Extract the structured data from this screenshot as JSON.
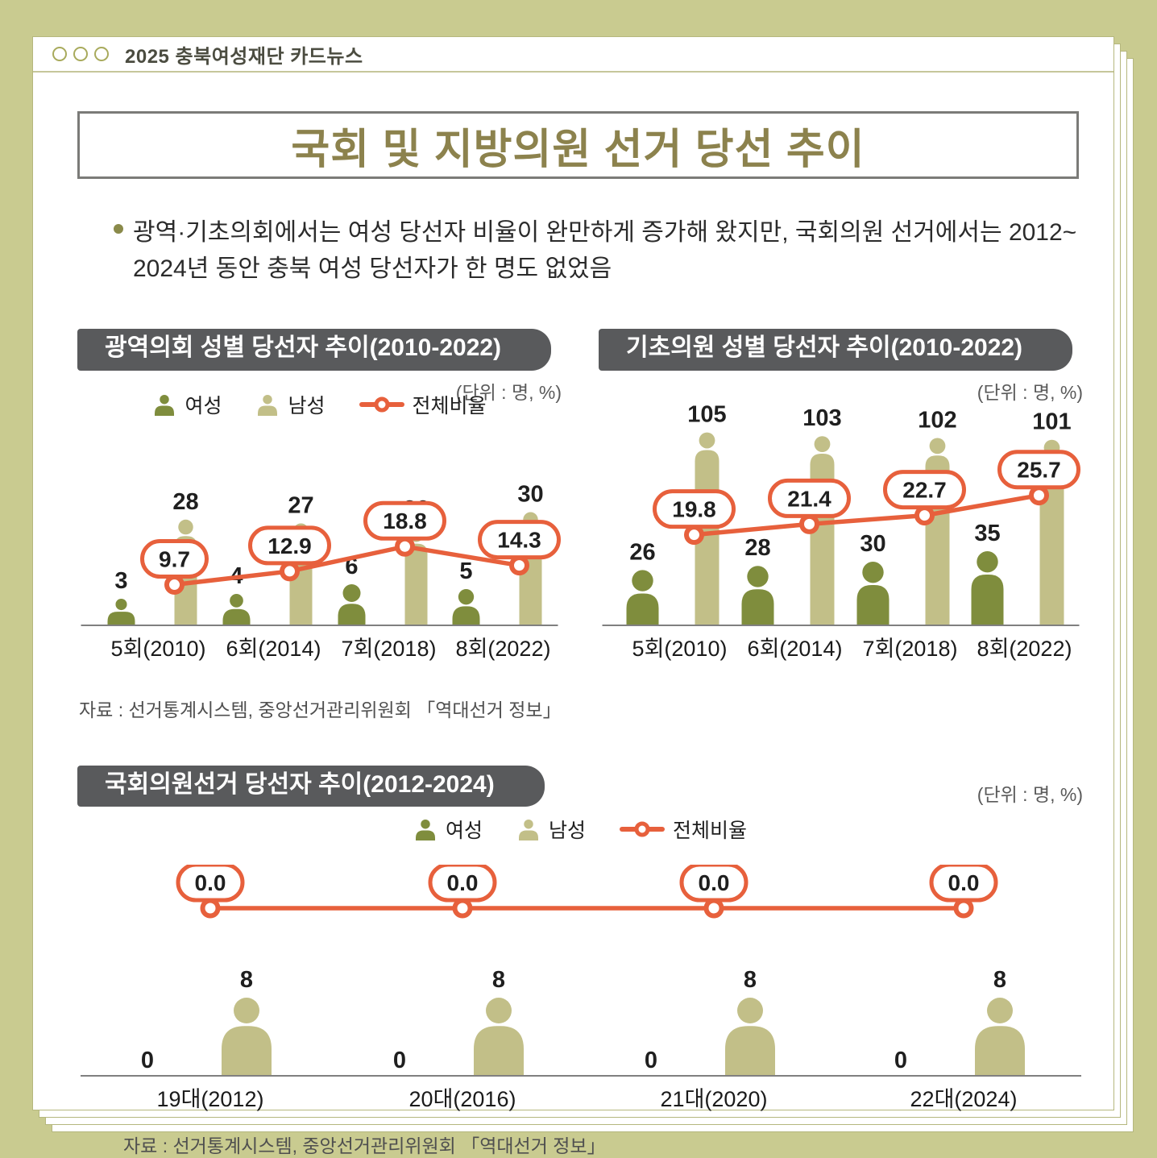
{
  "page": {
    "header": {
      "brand": "2025 충북여성재단 카드뉴스"
    },
    "title": "국회 및 지방의원 선거 당선 추이",
    "intro": "광역·기초의회에서는 여성 당선자 비율이 완만하게 증가해 왔지만, 국회의원 선거에서는 2012~\n2024년 동안 충북 여성 당선자가 한 명도 없었음",
    "legend": {
      "female": "여성",
      "male": "남성",
      "ratio": "전체비율"
    },
    "source": "자료 : 선거통계시스템, 중앙선거관리위원회 「역대선거 정보」"
  },
  "colors": {
    "background": "#c9cb90",
    "card": "#ffffff",
    "female": "#7f8d3d",
    "male": "#c2bf88",
    "line": "#e7603c",
    "section_pill_bg": "#595a5c",
    "title_text": "#8c824d",
    "value_text": "#1f1f1f"
  },
  "chart_data": [
    {
      "type": "bar",
      "title": "광역의회 성별 당선자 추이(2010-2022)",
      "unit": "(단위 : 명, %)",
      "categories": [
        "5회(2010)",
        "6회(2014)",
        "7회(2018)",
        "8회(2022)"
      ],
      "series": [
        {
          "name": "여성",
          "values": [
            3,
            4,
            6,
            5
          ]
        },
        {
          "name": "남성",
          "values": [
            28,
            27,
            26,
            30
          ]
        },
        {
          "name": "전체비율",
          "values": [
            9.7,
            12.9,
            18.8,
            14.3
          ]
        }
      ],
      "legend_position": "top",
      "grid": false
    },
    {
      "type": "bar",
      "title": "기초의원 성별 당선자 추이(2010-2022)",
      "unit": "(단위 : 명, %)",
      "categories": [
        "5회(2010)",
        "6회(2014)",
        "7회(2018)",
        "8회(2022)"
      ],
      "series": [
        {
          "name": "여성",
          "values": [
            26,
            28,
            30,
            35
          ]
        },
        {
          "name": "남성",
          "values": [
            105,
            103,
            102,
            101
          ]
        },
        {
          "name": "전체비율",
          "values": [
            19.8,
            21.4,
            22.7,
            25.7
          ]
        }
      ],
      "legend_position": "none",
      "grid": false
    },
    {
      "type": "bar",
      "title": "국회의원선거 당선자 추이(2012-2024)",
      "unit": "(단위 : 명, %)",
      "categories": [
        "19대(2012)",
        "20대(2016)",
        "21대(2020)",
        "22대(2024)"
      ],
      "series": [
        {
          "name": "여성",
          "values": [
            0,
            0,
            0,
            0
          ]
        },
        {
          "name": "남성",
          "values": [
            8,
            8,
            8,
            8
          ]
        },
        {
          "name": "전체비율",
          "values": [
            0.0,
            0.0,
            0.0,
            0.0
          ]
        }
      ],
      "legend_position": "top-center",
      "grid": false
    }
  ]
}
